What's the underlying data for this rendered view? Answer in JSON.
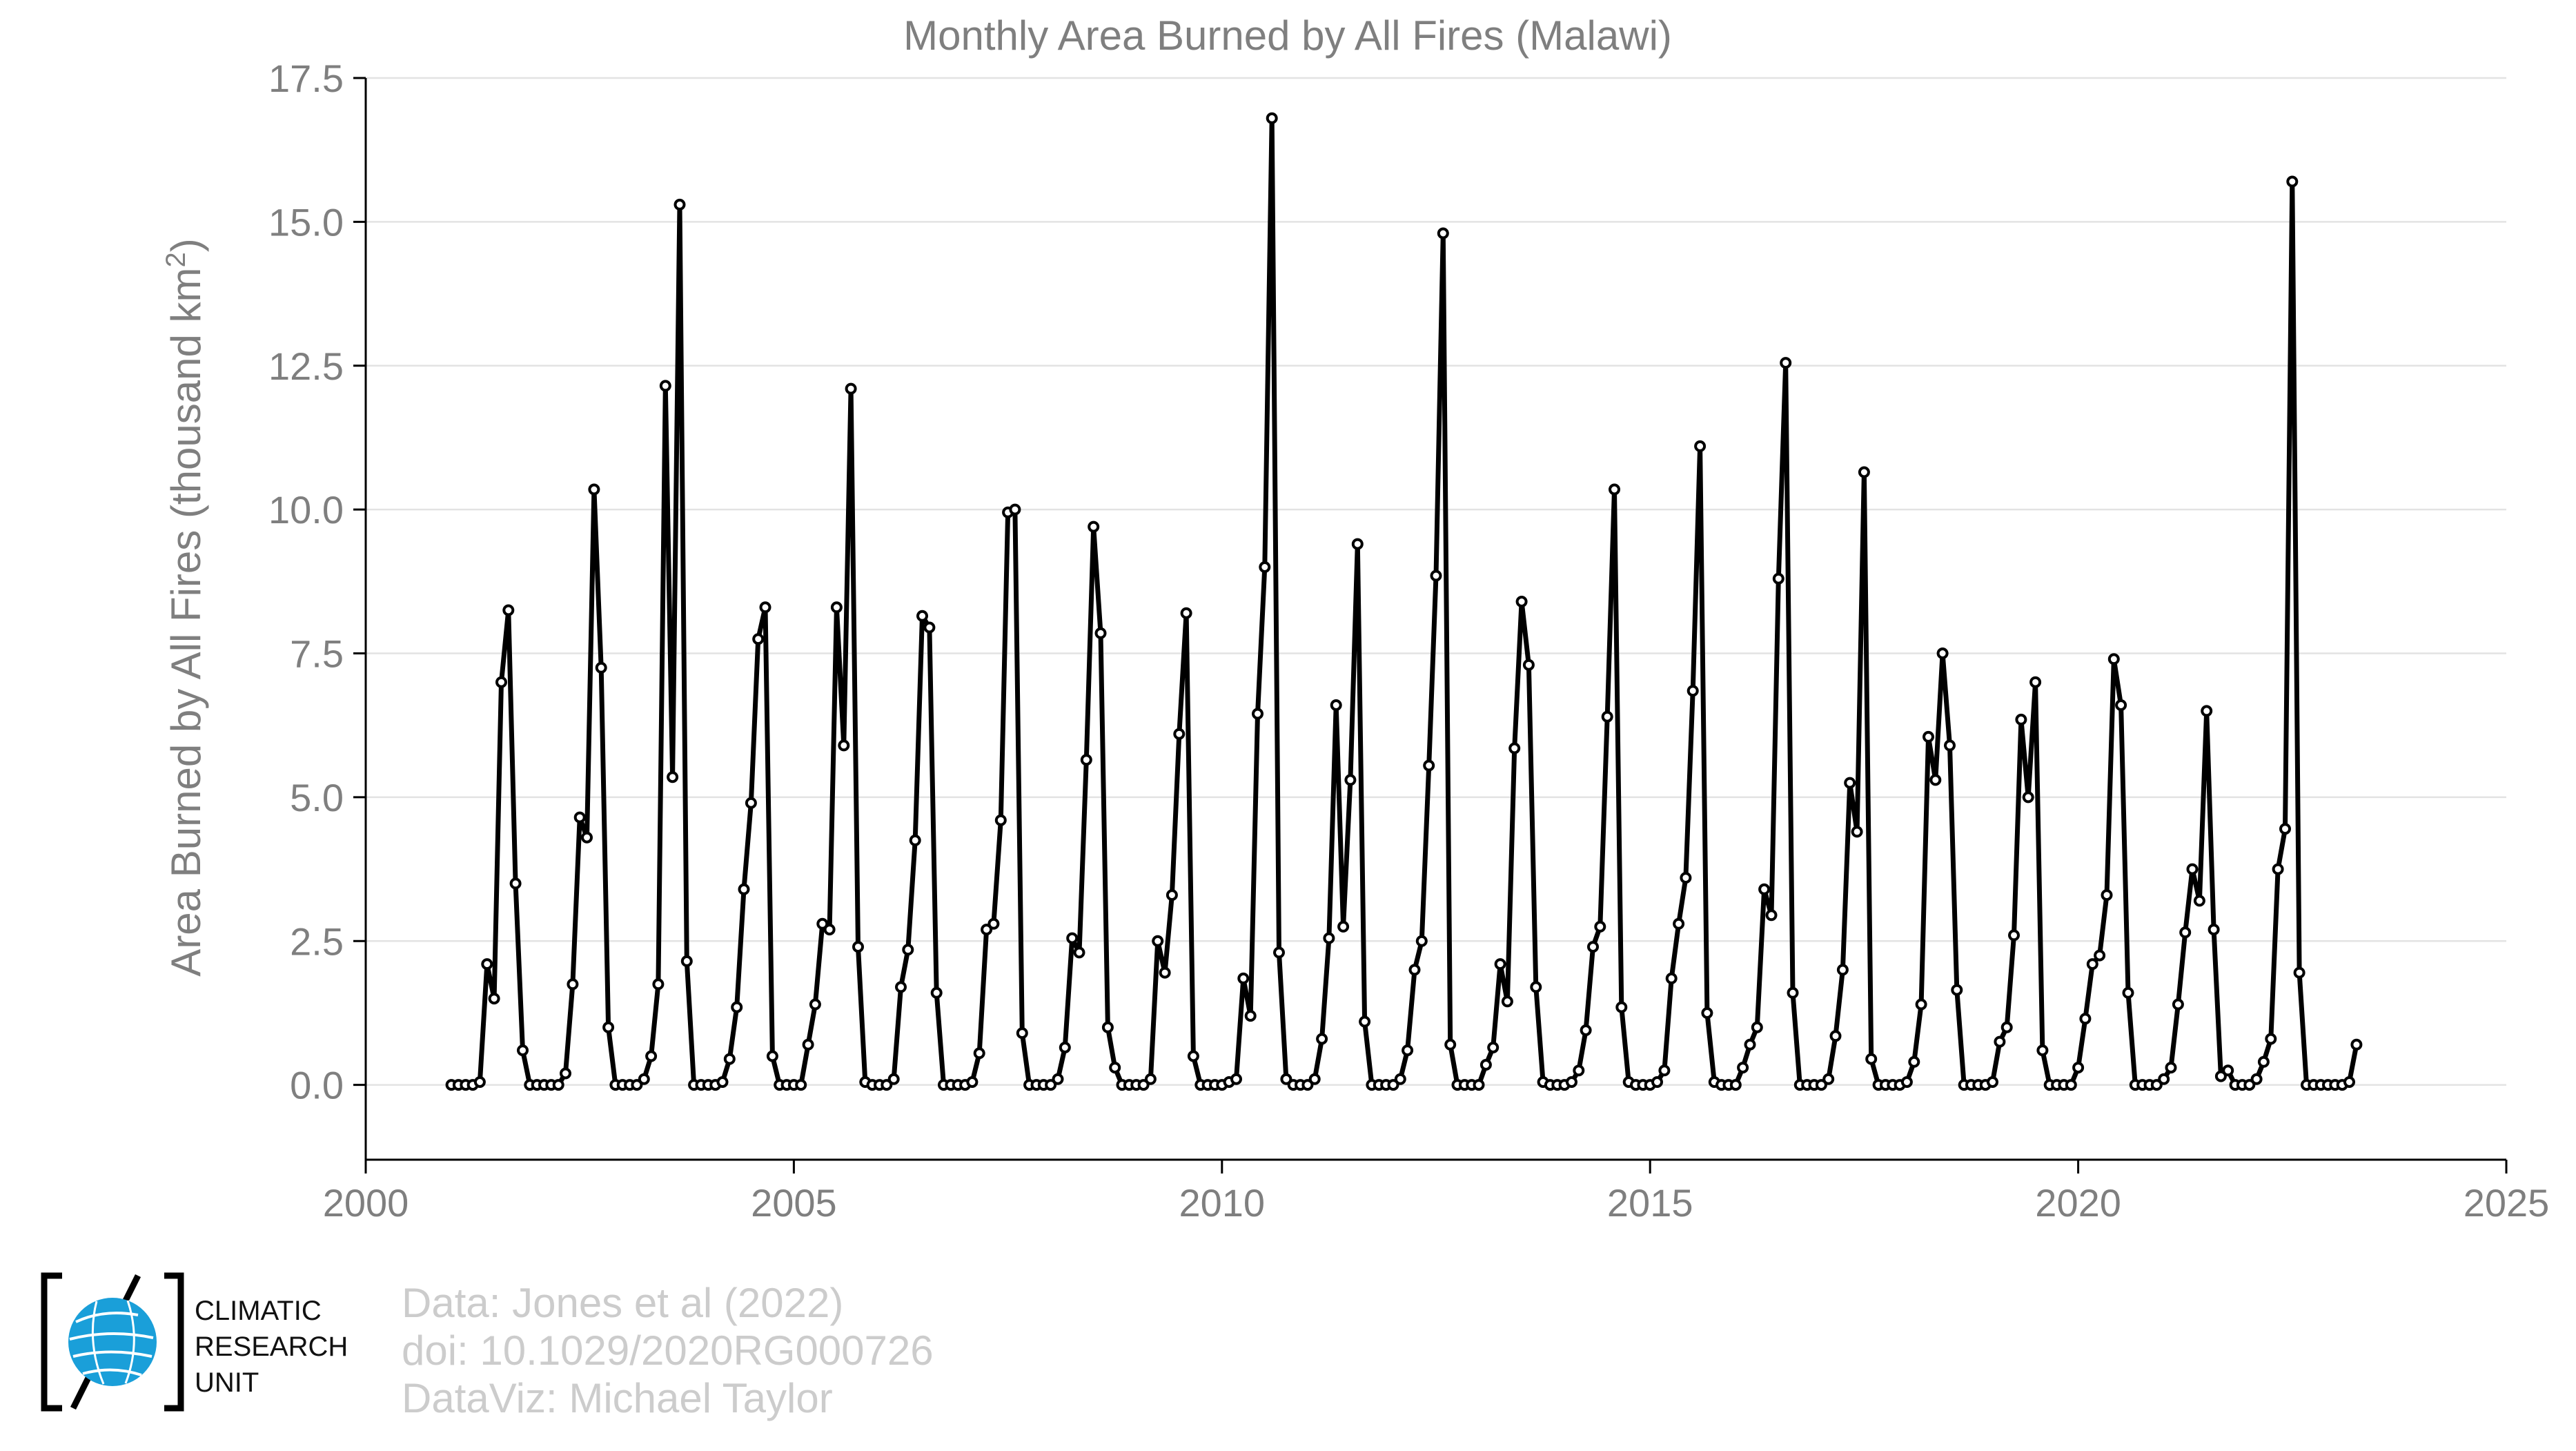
{
  "colors": {
    "line": "#000000",
    "axis_text": "#7f7f7f",
    "grid": "#e3e3e3",
    "credit_text": "#cccccc",
    "logo_globe": "#1a9fd9"
  },
  "logo": {
    "icon": "globe-icon",
    "lines": [
      "CLIMATIC",
      "RESEARCH",
      "UNIT"
    ]
  },
  "credits": [
    "Data: Jones et al (2022)",
    "doi: 10.1029/2020RG000726",
    "DataViz: Michael Taylor"
  ],
  "chart_data": {
    "type": "line",
    "title": "Monthly Area Burned by All Fires (Malawi)",
    "xlabel": "",
    "ylabel": "Area Burned by All Fires (thousand km",
    "ylabel_superscript": "2",
    "ylabel_suffix": ")",
    "xlim": [
      2000,
      2025
    ],
    "ylim": [
      -1.3,
      17.5
    ],
    "x_ticks": [
      2000,
      2005,
      2010,
      2015,
      2020,
      2025
    ],
    "x_tick_labels": [
      "2000",
      "2005",
      "2010",
      "2015",
      "2020",
      "2025"
    ],
    "y_ticks": [
      0,
      2.5,
      5,
      7.5,
      10,
      12.5,
      15,
      17.5
    ],
    "y_tick_labels": [
      "0.0",
      "2.5",
      "5.0",
      "7.5",
      "10.0",
      "12.5",
      "15.0",
      "17.5"
    ],
    "grid": "horizontal",
    "legend": "none",
    "start_year": 2001,
    "start_month": 1,
    "values": [
      0,
      0,
      0,
      0,
      0.05,
      2.1,
      1.5,
      7.0,
      8.25,
      3.5,
      0.6,
      0,
      0,
      0,
      0,
      0,
      0.2,
      1.75,
      4.65,
      4.3,
      10.35,
      7.25,
      1.0,
      0,
      0,
      0,
      0,
      0.1,
      0.5,
      1.75,
      12.15,
      5.35,
      15.3,
      2.15,
      0,
      0,
      0,
      0,
      0.05,
      0.45,
      1.35,
      3.4,
      4.9,
      7.75,
      8.3,
      0.5,
      0,
      0,
      0,
      0,
      0.7,
      1.4,
      2.8,
      2.7,
      8.3,
      5.9,
      12.1,
      2.4,
      0.05,
      0,
      0,
      0,
      0.1,
      1.7,
      2.35,
      4.25,
      8.15,
      7.95,
      1.6,
      0,
      0,
      0,
      0,
      0.05,
      0.55,
      2.7,
      2.8,
      4.6,
      9.95,
      10.0,
      0.9,
      0,
      0,
      0,
      0,
      0.1,
      0.65,
      2.55,
      2.3,
      5.65,
      9.7,
      7.85,
      1.0,
      0.3,
      0,
      0,
      0,
      0,
      0.1,
      2.5,
      1.95,
      3.3,
      6.1,
      8.2,
      0.5,
      0,
      0,
      0,
      0,
      0.05,
      0.1,
      1.85,
      1.2,
      6.45,
      9.0,
      16.8,
      2.3,
      0.1,
      0,
      0,
      0,
      0.1,
      0.8,
      2.55,
      6.6,
      2.75,
      5.3,
      9.4,
      1.1,
      0,
      0,
      0,
      0,
      0.1,
      0.6,
      2.0,
      2.5,
      5.55,
      8.85,
      14.8,
      0.7,
      0,
      0,
      0,
      0,
      0.35,
      0.65,
      2.1,
      1.45,
      5.85,
      8.4,
      7.3,
      1.7,
      0.05,
      0,
      0,
      0,
      0.05,
      0.25,
      0.95,
      2.4,
      2.75,
      6.4,
      10.35,
      1.35,
      0.05,
      0,
      0,
      0,
      0.05,
      0.25,
      1.85,
      2.8,
      3.6,
      6.85,
      11.1,
      1.25,
      0.05,
      0,
      0,
      0,
      0.3,
      0.7,
      1.0,
      3.4,
      2.95,
      8.8,
      12.55,
      1.6,
      0,
      0,
      0,
      0,
      0.1,
      0.85,
      2.0,
      5.25,
      4.4,
      10.65,
      0.45,
      0,
      0,
      0,
      0,
      0.05,
      0.4,
      1.4,
      6.05,
      5.3,
      7.5,
      5.9,
      1.65,
      0,
      0,
      0,
      0,
      0.05,
      0.75,
      1.0,
      2.6,
      6.35,
      5.0,
      7.0,
      0.6,
      0,
      0,
      0,
      0,
      0.3,
      1.15,
      2.1,
      2.25,
      3.3,
      7.4,
      6.6,
      1.6,
      0,
      0,
      0,
      0,
      0.1,
      0.3,
      1.4,
      2.65,
      3.75,
      3.2,
      6.5,
      2.7,
      0.15,
      0.25,
      0,
      0,
      0,
      0.1,
      0.4,
      0.8,
      3.75,
      4.45,
      15.7,
      1.95,
      0,
      0,
      0,
      0,
      0,
      0,
      0.05,
      0.7
    ]
  }
}
